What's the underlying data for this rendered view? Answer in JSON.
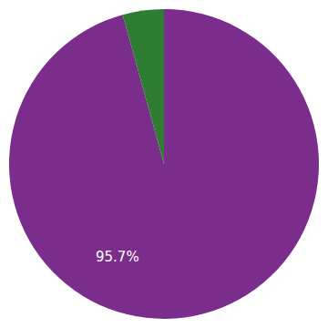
{
  "chart_data": {
    "type": "pie",
    "values": [
      95.7,
      4.3
    ],
    "colors": [
      "#7b2d8b",
      "#2e7d32"
    ],
    "annotations": [
      "95.7%"
    ]
  }
}
